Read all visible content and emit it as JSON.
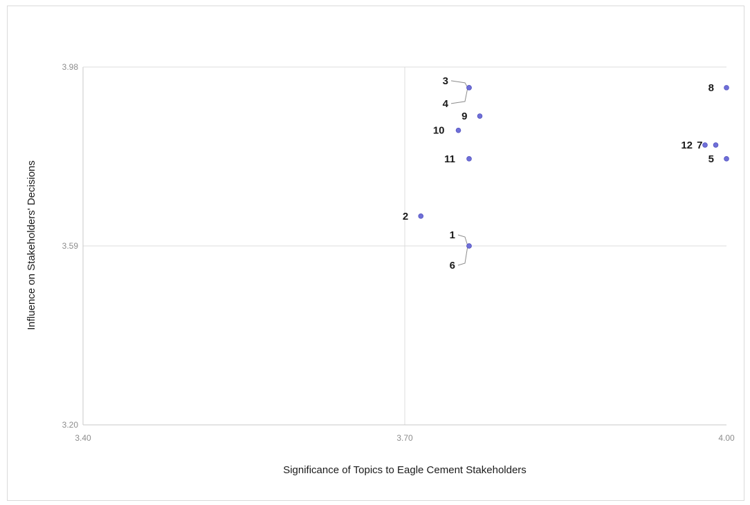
{
  "chart_data": {
    "type": "scatter",
    "title": "",
    "xlabel": "Significance of Topics to Eagle Cement Stakeholders",
    "ylabel": "Influence on Stakeholders' Decisions",
    "xlim": [
      3.4,
      4.0
    ],
    "ylim": [
      3.2,
      3.98
    ],
    "x_ticks": [
      "3.40",
      "3.70",
      "4.00"
    ],
    "y_ticks": [
      "3.20",
      "3.59",
      "3.98"
    ],
    "x_tick_values": [
      3.4,
      3.7,
      4.0
    ],
    "y_tick_values": [
      3.2,
      3.59,
      3.98
    ],
    "quadrant_lines": {
      "x": 3.7,
      "y": 3.59
    },
    "grid": false,
    "legend": "none",
    "marker_color": "#6f6fd8",
    "points": [
      {
        "label": "1",
        "x": 3.76,
        "y": 3.59
      },
      {
        "label": "2",
        "x": 3.715,
        "y": 3.655
      },
      {
        "label": "3",
        "x": 3.76,
        "y": 3.935
      },
      {
        "label": "4",
        "x": 3.76,
        "y": 3.935
      },
      {
        "label": "5",
        "x": 4.0,
        "y": 3.78
      },
      {
        "label": "6",
        "x": 3.76,
        "y": 3.59
      },
      {
        "label": "7",
        "x": 3.99,
        "y": 3.81
      },
      {
        "label": "8",
        "x": 4.0,
        "y": 3.935
      },
      {
        "label": "9",
        "x": 3.77,
        "y": 3.873
      },
      {
        "label": "10",
        "x": 3.75,
        "y": 3.842
      },
      {
        "label": "11",
        "x": 3.76,
        "y": 3.78
      },
      {
        "label": "12",
        "x": 3.98,
        "y": 3.81
      }
    ]
  }
}
